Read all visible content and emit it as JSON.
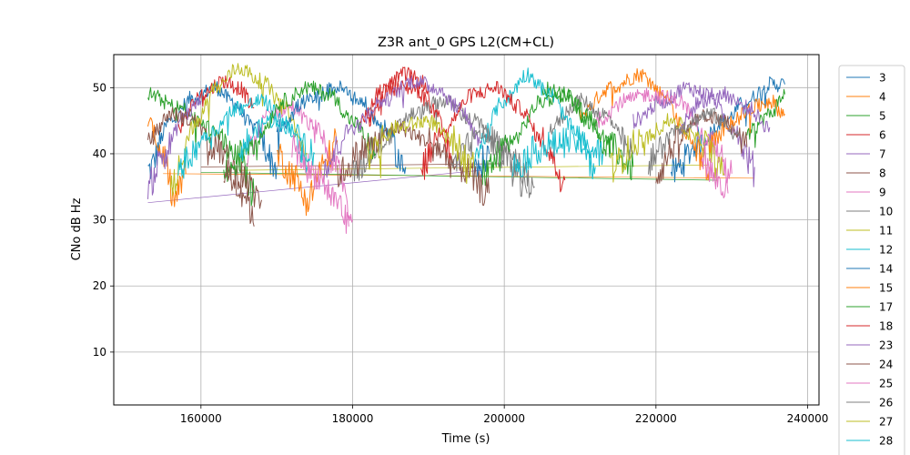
{
  "chart_data": {
    "type": "line",
    "title": "Z3R ant_0 GPS L2(CM+CL)",
    "xlabel": "Time (s)",
    "ylabel": "CNo dB Hz",
    "xlim": [
      148500,
      241500
    ],
    "ylim": [
      2,
      55
    ],
    "x_ticks": [
      160000,
      180000,
      200000,
      220000,
      240000
    ],
    "x_tick_labels": [
      "160000",
      "180000",
      "200000",
      "220000",
      "240000"
    ],
    "y_ticks": [
      10,
      20,
      30,
      40,
      50
    ],
    "y_tick_labels": [
      "10",
      "20",
      "30",
      "40",
      "50"
    ],
    "grid": true,
    "legend_position": "right-outside",
    "series": [
      {
        "name": "3",
        "color": "#1f77b4",
        "segments": [
          [
            [
              153000,
              37.5
            ],
            [
              156000,
              45
            ],
            [
              159000,
              48.5
            ],
            [
              162000,
              50
            ],
            [
              164000,
              48
            ],
            [
              167000,
              44
            ],
            [
              170000,
              38
            ]
          ],
          [
            [
              222000,
              37
            ],
            [
              226000,
              42
            ],
            [
              229000,
              45
            ],
            [
              232000,
              48
            ],
            [
              235000,
              50.5
            ],
            [
              237000,
              50.5
            ]
          ]
        ]
      },
      {
        "name": "4",
        "color": "#ff7f0e",
        "segments": [
          [
            [
              153000,
              45
            ],
            [
              155000,
              40
            ],
            [
              156500,
              33
            ],
            [
              158000,
              37
            ]
          ],
          [
            [
              210000,
              46
            ],
            [
              214000,
              50
            ],
            [
              218000,
              52
            ],
            [
              221000,
              49
            ],
            [
              224000,
              43
            ],
            [
              227000,
              38
            ]
          ]
        ]
      },
      {
        "name": "5",
        "color": "#2ca02c",
        "segments": [
          [
            [
              153000,
              49
            ],
            [
              157000,
              47
            ],
            [
              161000,
              44
            ],
            [
              165000,
              39
            ],
            [
              167000,
              34
            ]
          ],
          [
            [
              205000,
              50
            ],
            [
              208000,
              49
            ],
            [
              211000,
              45
            ],
            [
              214000,
              41
            ],
            [
              217000,
              38
            ]
          ],
          [
            [
              232000,
              43
            ],
            [
              235000,
              46
            ],
            [
              237000,
              49
            ]
          ]
        ]
      },
      {
        "name": "6",
        "color": "#d62728",
        "segments": [
          [
            [
              157000,
              44
            ],
            [
              160000,
              49
            ],
            [
              163000,
              51
            ],
            [
              165000,
              50
            ],
            [
              167000,
              47
            ]
          ],
          [
            [
              182000,
              45
            ],
            [
              185000,
              50
            ],
            [
              188000,
              50
            ],
            [
              190000,
              48
            ]
          ]
        ]
      },
      {
        "name": "7",
        "color": "#9467bd",
        "segments": [
          [
            [
              153000,
              35
            ],
            [
              155000,
              40
            ],
            [
              158000,
              46
            ],
            [
              160000,
              48
            ]
          ],
          [
            [
              217000,
              45
            ],
            [
              221000,
              48
            ],
            [
              224000,
              50
            ],
            [
              227000,
              49
            ],
            [
              230000,
              44
            ],
            [
              233000,
              38
            ]
          ]
        ]
      },
      {
        "name": "8",
        "color": "#8c564b",
        "segments": [
          [
            [
              153000,
              42
            ],
            [
              156000,
              46
            ],
            [
              159000,
              45
            ],
            [
              162000,
              41
            ],
            [
              165000,
              37
            ],
            [
              168000,
              33
            ]
          ],
          [
            [
              220000,
              37
            ],
            [
              223000,
              42
            ],
            [
              226000,
              46
            ],
            [
              229000,
              45
            ],
            [
              232000,
              41
            ]
          ]
        ]
      },
      {
        "name": "9",
        "color": "#e377c2",
        "segments": [
          [
            [
              166000,
              40
            ],
            [
              169000,
              46
            ],
            [
              172000,
              47
            ],
            [
              175000,
              44
            ],
            [
              178000,
              38
            ],
            [
              180000,
              30
            ]
          ],
          [
            [
              212000,
              45
            ],
            [
              216000,
              48
            ],
            [
              219000,
              49
            ],
            [
              223000,
              48
            ],
            [
              227000,
              42
            ],
            [
              230000,
              37
            ]
          ]
        ]
      },
      {
        "name": "10",
        "color": "#7f7f7f",
        "segments": [
          [
            [
              180000,
              37
            ],
            [
              184000,
              42
            ],
            [
              188000,
              46
            ],
            [
              192000,
              48
            ],
            [
              196000,
              45
            ],
            [
              200000,
              40
            ],
            [
              203000,
              34
            ]
          ],
          [
            [
              206000,
              44
            ],
            [
              210000,
              48
            ],
            [
              213000,
              46
            ],
            [
              217000,
              40
            ]
          ]
        ]
      },
      {
        "name": "11",
        "color": "#bcbd22",
        "segments": [
          [
            [
              156000,
              35
            ],
            [
              159000,
              44
            ],
            [
              162000,
              50
            ],
            [
              165000,
              53
            ],
            [
              168000,
              51
            ],
            [
              171000,
              47
            ],
            [
              174000,
              40
            ]
          ],
          [
            [
              214000,
              38
            ],
            [
              218000,
              42
            ],
            [
              222000,
              45
            ],
            [
              226000,
              42
            ],
            [
              229000,
              37
            ]
          ]
        ]
      },
      {
        "name": "12",
        "color": "#17becf",
        "segments": [
          [
            [
              157000,
              38
            ],
            [
              161000,
              43
            ],
            [
              165000,
              47
            ],
            [
              168000,
              48
            ],
            [
              171000,
              45
            ],
            [
              174000,
              38
            ]
          ],
          [
            [
              196000,
              40
            ],
            [
              200000,
              48
            ],
            [
              203000,
              52
            ],
            [
              206000,
              49
            ],
            [
              209000,
              44
            ],
            [
              212000,
              38
            ]
          ]
        ]
      },
      {
        "name": "14",
        "color": "#1f77b4",
        "segments": [
          [
            [
              170000,
              44
            ],
            [
              174000,
              48
            ],
            [
              178000,
              50
            ],
            [
              181000,
              48
            ],
            [
              184000,
              44
            ],
            [
              187000,
              38
            ]
          ],
          [
            [
              196000,
              37
            ],
            [
              198000,
              40
            ]
          ]
        ]
      },
      {
        "name": "15",
        "color": "#ff7f0e",
        "segments": [
          [
            [
              170000,
              40
            ],
            [
              172000,
              37
            ],
            [
              174000,
              33
            ],
            [
              176000,
              38
            ],
            [
              178000,
              42
            ]
          ],
          [
            [
              227000,
              41
            ],
            [
              230000,
              45
            ],
            [
              233000,
              47
            ],
            [
              235000,
              48
            ],
            [
              237000,
              46
            ]
          ]
        ]
      },
      {
        "name": "17",
        "color": "#2ca02c",
        "segments": [
          [
            [
              163000,
              37
            ],
            [
              167000,
              42
            ],
            [
              171000,
              48
            ],
            [
              174000,
              50
            ],
            [
              177000,
              49
            ],
            [
              180000,
              45
            ],
            [
              183000,
              40
            ]
          ],
          [
            [
              197000,
              37
            ],
            [
              201000,
              42
            ],
            [
              205000,
              48
            ],
            [
              208000,
              49
            ],
            [
              211000,
              46
            ],
            [
              214000,
              40
            ]
          ]
        ]
      },
      {
        "name": "18",
        "color": "#d62728",
        "segments": [
          [
            [
              181000,
              45
            ],
            [
              184000,
              50
            ],
            [
              187000,
              52
            ],
            [
              189000,
              51
            ],
            [
              191000,
              46
            ],
            [
              193000,
              39
            ]
          ],
          [
            [
              189000,
              38
            ],
            [
              192000,
              44
            ],
            [
              196000,
              49
            ],
            [
              199000,
              50
            ],
            [
              202000,
              47
            ],
            [
              205000,
              42
            ],
            [
              208000,
              36
            ]
          ]
        ]
      },
      {
        "name": "23",
        "color": "#9467bd",
        "segments": [
          [
            [
              176000,
              38
            ],
            [
              180000,
              44
            ],
            [
              184000,
              48
            ],
            [
              188000,
              51
            ],
            [
              191000,
              50
            ],
            [
              194000,
              47
            ],
            [
              197000,
              42
            ]
          ],
          [
            [
              223000,
              44
            ],
            [
              226000,
              48
            ],
            [
              229000,
              49
            ],
            [
              232000,
              47
            ],
            [
              235000,
              44
            ]
          ]
        ]
      },
      {
        "name": "24",
        "color": "#8c564b",
        "segments": [
          [
            [
              163000,
              37
            ],
            [
              166000,
              34
            ],
            [
              167000,
              29
            ]
          ],
          [
            [
              178000,
              37
            ],
            [
              182000,
              41
            ],
            [
              186000,
              44
            ],
            [
              190000,
              42
            ],
            [
              194000,
              38
            ],
            [
              198000,
              34
            ]
          ]
        ]
      },
      {
        "name": "25",
        "color": "#e377c2",
        "segments": [
          [
            [
              172000,
              41
            ],
            [
              175000,
              37
            ],
            [
              178000,
              33
            ],
            [
              179500,
              29
            ]
          ],
          [
            [
              226000,
              40
            ],
            [
              228000,
              36
            ],
            [
              229500,
              34
            ]
          ]
        ]
      },
      {
        "name": "26",
        "color": "#7f7f7f",
        "segments": [
          [
            [
              193000,
              38
            ],
            [
              197000,
              43
            ],
            [
              201000,
              40
            ],
            [
              204000,
              35
            ]
          ],
          [
            [
              219000,
              39
            ],
            [
              223000,
              44
            ],
            [
              227000,
              46
            ],
            [
              231000,
              43
            ]
          ]
        ]
      },
      {
        "name": "27",
        "color": "#bcbd22",
        "segments": [
          [
            [
              182000,
              40
            ],
            [
              186000,
              44
            ],
            [
              190000,
              45
            ],
            [
              193000,
              42
            ],
            [
              196000,
              38
            ]
          ]
        ]
      },
      {
        "name": "28",
        "color": "#17becf",
        "segments": [
          [
            [
              165000,
              41
            ],
            [
              169000,
              45
            ],
            [
              172000,
              44
            ],
            [
              175000,
              40
            ]
          ],
          [
            [
              201000,
              38
            ],
            [
              205000,
              41
            ],
            [
              209000,
              42
            ],
            [
              213000,
              40
            ]
          ]
        ]
      }
    ],
    "connector_lines": [
      {
        "color": "#9467bd",
        "points": [
          [
            153000,
            32.6
          ],
          [
            197000,
            37.5
          ]
        ]
      },
      {
        "color": "#ff7f0e",
        "points": [
          [
            155000,
            37
          ],
          [
            233000,
            36.3
          ]
        ]
      },
      {
        "color": "#2ca02c",
        "points": [
          [
            160000,
            37.2
          ],
          [
            228000,
            36
          ]
        ]
      },
      {
        "color": "#bcbd22",
        "points": [
          [
            165000,
            37.5
          ],
          [
            227000,
            38.3
          ]
        ]
      },
      {
        "color": "#8c564b",
        "points": [
          [
            160000,
            38
          ],
          [
            200000,
            38.5
          ]
        ]
      }
    ]
  }
}
